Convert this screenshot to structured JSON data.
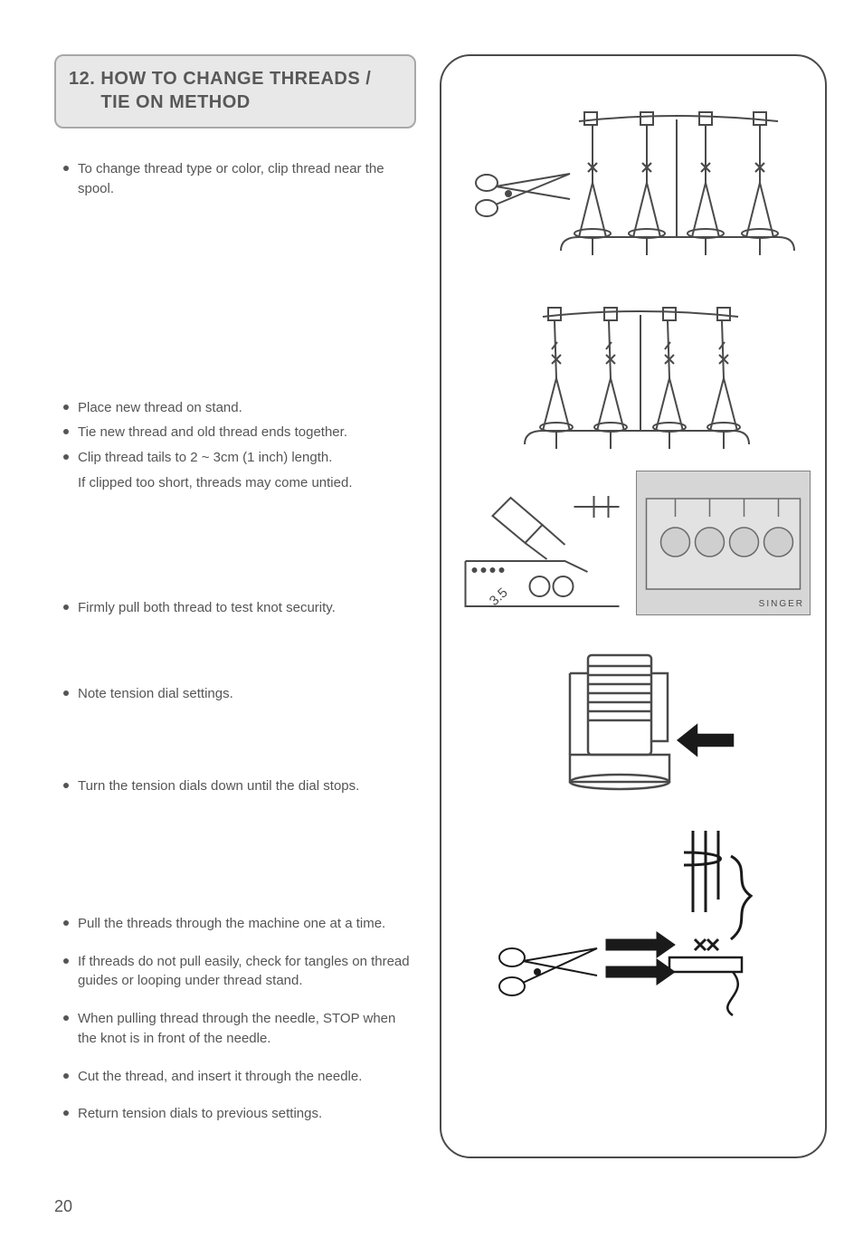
{
  "heading": {
    "number": "12.",
    "line1": "HOW TO CHANGE THREADS /",
    "line2": "TIE ON METHOD"
  },
  "groups": [
    {
      "top_margin": 0,
      "items": [
        {
          "text": "To change thread type or color, clip thread near the spool."
        }
      ]
    },
    {
      "top_margin": 220,
      "items": [
        {
          "text": "Place new thread on stand."
        },
        {
          "text": "Tie new thread and old thread ends together."
        },
        {
          "text": "Clip thread tails to 2 ~ 3cm (1 inch) length.",
          "sub": "If clipped too short, threads may come untied."
        }
      ]
    },
    {
      "top_margin": 116,
      "items": [
        {
          "text": "Firmly pull both thread to test knot security."
        }
      ]
    },
    {
      "top_margin": 74,
      "items": [
        {
          "text": "Note tension dial settings."
        }
      ]
    },
    {
      "top_margin": 80,
      "items": [
        {
          "text": "Turn the tension dials down until the dial stops."
        }
      ]
    },
    {
      "top_margin": 130,
      "items": [
        {
          "text": "Pull the threads through the machine one at a time."
        },
        {
          "spacer": 14
        },
        {
          "text": "If threads do not pull easily, check for tangles on thread guides or looping under thread stand."
        },
        {
          "spacer": 14
        },
        {
          "text": "When pulling thread through the needle, STOP when the knot is in front of the needle."
        },
        {
          "spacer": 14
        },
        {
          "text": "Cut the thread, and insert it through the needle."
        },
        {
          "spacer": 14
        },
        {
          "text": "Return tension dials to previous settings."
        }
      ]
    }
  ],
  "page_number": "20",
  "diagram_labels": {
    "dial_value": "3.5",
    "brand": "SINGER"
  },
  "colors": {
    "text": "#555555",
    "heading_bg": "#e8e8e8",
    "heading_border": "#a8a8a8",
    "stroke": "#4a4a4a",
    "photo_bg": "#d6d6d6"
  }
}
